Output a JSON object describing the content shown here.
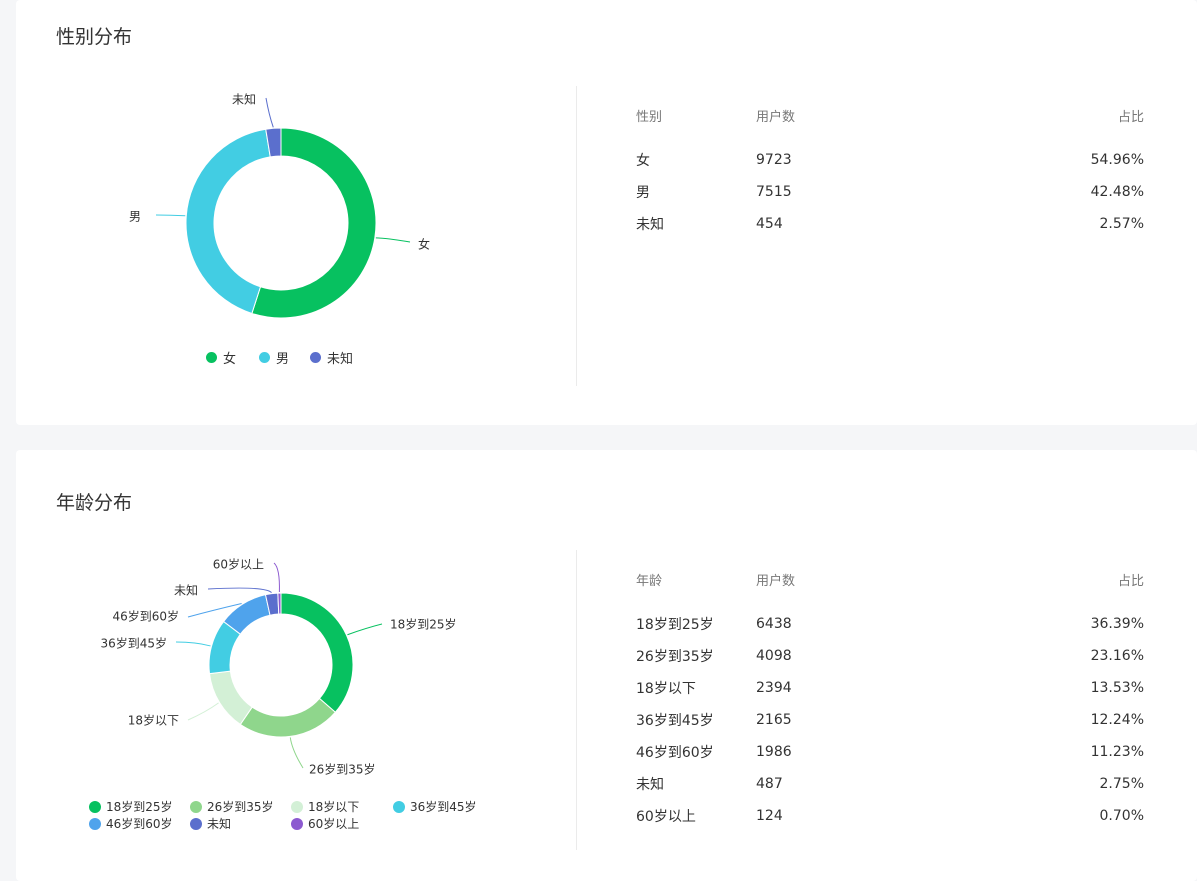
{
  "gender": {
    "title": "性别分布",
    "table": {
      "headers": [
        "性别",
        "用户数",
        "占比"
      ],
      "rows": [
        [
          "女",
          "9723",
          "54.96%"
        ],
        [
          "男",
          "7515",
          "42.48%"
        ],
        [
          "未知",
          "454",
          "2.57%"
        ]
      ]
    },
    "legend": [
      "女",
      "男",
      "未知"
    ]
  },
  "age": {
    "title": "年龄分布",
    "table": {
      "headers": [
        "年龄",
        "用户数",
        "占比"
      ],
      "rows": [
        [
          "18岁到25岁",
          "6438",
          "36.39%"
        ],
        [
          "26岁到35岁",
          "4098",
          "23.16%"
        ],
        [
          "18岁以下",
          "2394",
          "13.53%"
        ],
        [
          "36岁到45岁",
          "2165",
          "12.24%"
        ],
        [
          "46岁到60岁",
          "1986",
          "11.23%"
        ],
        [
          "未知",
          "487",
          "2.75%"
        ],
        [
          "60岁以上",
          "124",
          "0.70%"
        ]
      ]
    },
    "legend": [
      "18岁到25岁",
      "26岁到35岁",
      "18岁以下",
      "36岁到45岁",
      "46岁到60岁",
      "未知",
      "60岁以上"
    ]
  },
  "chart_data": [
    {
      "type": "pie",
      "categories": [
        "女",
        "男",
        "未知"
      ],
      "values": [
        9723,
        7515,
        454
      ],
      "colors": [
        "#07c160",
        "#42cde3",
        "#5b6fcd"
      ],
      "legend": "bottom"
    },
    {
      "type": "pie",
      "categories": [
        "18岁到25岁",
        "26岁到35岁",
        "18岁以下",
        "36岁到45岁",
        "46岁到60岁",
        "未知",
        "60岁以上"
      ],
      "values": [
        6438,
        4098,
        2394,
        2165,
        1986,
        487,
        124
      ],
      "colors": [
        "#07c160",
        "#8fd68c",
        "#d3f0d6",
        "#42cde3",
        "#4fa3ec",
        "#5b6fcd",
        "#8c5ad0"
      ],
      "legend": "bottom"
    }
  ]
}
